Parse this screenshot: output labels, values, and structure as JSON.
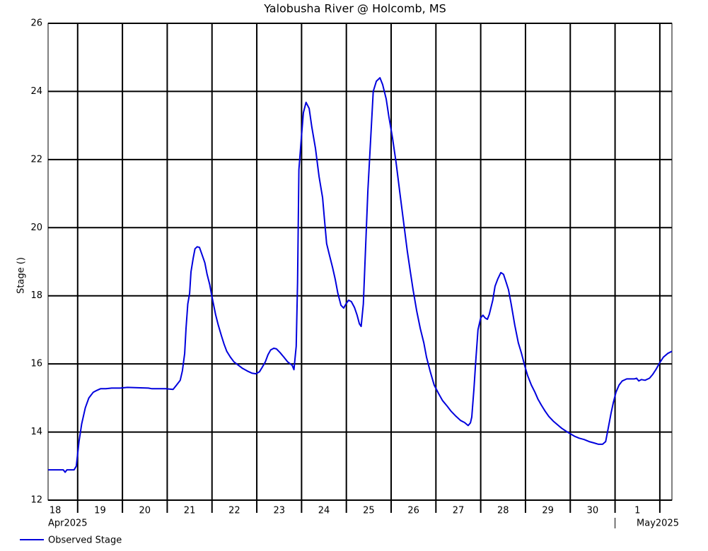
{
  "chart_data": {
    "type": "line",
    "title": "Yalobusha River @ Holcomb, MS",
    "y_label": "Stage ()",
    "xlim": [
      107.34,
      121.27
    ],
    "ylim": [
      12,
      26
    ],
    "yticks": [
      12,
      14,
      16,
      18,
      20,
      22,
      24,
      26
    ],
    "x_gridlines": [
      108,
      109,
      110,
      111,
      112,
      113,
      114,
      115,
      116,
      117,
      118,
      119,
      120,
      121
    ],
    "xticks": [
      {
        "value": 107.5,
        "label": "18"
      },
      {
        "value": 108.5,
        "label": "19"
      },
      {
        "value": 109.5,
        "label": "20"
      },
      {
        "value": 110.5,
        "label": "21"
      },
      {
        "value": 111.5,
        "label": "22"
      },
      {
        "value": 112.5,
        "label": "23"
      },
      {
        "value": 113.5,
        "label": "24"
      },
      {
        "value": 114.5,
        "label": "25"
      },
      {
        "value": 115.5,
        "label": "26"
      },
      {
        "value": 116.5,
        "label": "27"
      },
      {
        "value": 117.5,
        "label": "28"
      },
      {
        "value": 118.5,
        "label": "29"
      },
      {
        "value": 119.5,
        "label": "30"
      },
      {
        "value": 120.5,
        "label": "1"
      }
    ],
    "month_labels": [
      {
        "value": 107,
        "label": "Apr2025"
      },
      {
        "value": 120,
        "label": "May2025"
      }
    ],
    "grid": true,
    "legend": "bottom-left",
    "x": [
      107.34,
      107.68,
      107.72,
      107.76,
      107.92,
      107.97,
      108.03,
      108.09,
      108.17,
      108.25,
      108.35,
      108.41,
      108.51,
      108.63,
      108.76,
      108.87,
      108.95,
      109.11,
      109.58,
      109.66,
      109.77,
      109.97,
      110.13,
      110.21,
      110.29,
      110.34,
      110.39,
      110.42,
      110.46,
      110.5,
      110.53,
      110.58,
      110.62,
      110.67,
      110.72,
      110.78,
      110.84,
      110.89,
      110.95,
      111.0,
      111.08,
      111.14,
      111.21,
      111.27,
      111.33,
      111.41,
      111.49,
      111.59,
      111.68,
      111.79,
      111.89,
      111.98,
      112.06,
      112.12,
      112.19,
      112.25,
      112.31,
      112.38,
      112.44,
      112.52,
      112.61,
      112.69,
      112.79,
      112.83,
      112.88,
      112.91,
      112.94,
      112.99,
      113.04,
      113.1,
      113.17,
      113.23,
      113.31,
      113.39,
      113.47,
      113.51,
      113.56,
      113.62,
      113.69,
      113.75,
      113.81,
      113.88,
      113.94,
      113.99,
      114.05,
      114.11,
      114.18,
      114.24,
      114.29,
      114.33,
      114.38,
      114.43,
      114.48,
      114.54,
      114.6,
      114.67,
      114.75,
      114.81,
      114.89,
      114.95,
      115.03,
      115.11,
      115.19,
      115.25,
      115.3,
      115.36,
      115.43,
      115.49,
      115.57,
      115.65,
      115.73,
      115.79,
      115.87,
      115.96,
      116.06,
      116.15,
      116.25,
      116.34,
      116.45,
      116.55,
      116.64,
      116.72,
      116.77,
      116.8,
      116.85,
      116.89,
      116.94,
      117.0,
      117.05,
      117.1,
      117.15,
      117.19,
      117.27,
      117.32,
      117.38,
      117.45,
      117.51,
      117.57,
      117.62,
      117.68,
      117.76,
      117.84,
      117.91,
      117.98,
      118.05,
      118.13,
      118.21,
      118.28,
      118.36,
      118.44,
      118.52,
      118.62,
      118.71,
      118.81,
      118.9,
      119.0,
      119.09,
      119.2,
      119.31,
      119.42,
      119.53,
      119.63,
      119.72,
      119.79,
      119.85,
      119.91,
      119.96,
      120.02,
      120.09,
      120.16,
      120.26,
      120.35,
      120.43,
      120.48,
      120.53,
      120.59,
      120.67,
      120.77,
      120.84,
      120.92,
      121.0,
      121.08,
      121.18,
      121.27
    ],
    "series": [
      {
        "name": "Observed Stage",
        "color": "#0000dd",
        "values": [
          12.89,
          12.89,
          12.82,
          12.89,
          12.89,
          13.0,
          13.72,
          14.24,
          14.71,
          15.0,
          15.17,
          15.21,
          15.27,
          15.27,
          15.29,
          15.29,
          15.29,
          15.31,
          15.29,
          15.27,
          15.27,
          15.27,
          15.25,
          15.38,
          15.52,
          15.8,
          16.31,
          17.04,
          17.76,
          18.07,
          18.7,
          19.1,
          19.38,
          19.44,
          19.42,
          19.2,
          18.97,
          18.63,
          18.32,
          17.97,
          17.45,
          17.14,
          16.83,
          16.58,
          16.37,
          16.2,
          16.06,
          15.96,
          15.87,
          15.79,
          15.73,
          15.71,
          15.77,
          15.9,
          16.06,
          16.27,
          16.41,
          16.46,
          16.44,
          16.33,
          16.19,
          16.06,
          15.96,
          15.83,
          16.52,
          18.39,
          21.7,
          22.54,
          23.37,
          23.68,
          23.5,
          22.95,
          22.33,
          21.5,
          20.88,
          20.25,
          19.53,
          19.21,
          18.84,
          18.49,
          18.07,
          17.72,
          17.64,
          17.76,
          17.87,
          17.83,
          17.66,
          17.43,
          17.18,
          17.1,
          17.76,
          19.42,
          21.08,
          22.54,
          24.0,
          24.3,
          24.4,
          24.2,
          23.78,
          23.26,
          22.64,
          21.91,
          21.08,
          20.46,
          19.94,
          19.32,
          18.7,
          18.18,
          17.56,
          17.04,
          16.62,
          16.2,
          15.79,
          15.38,
          15.13,
          14.92,
          14.76,
          14.61,
          14.46,
          14.34,
          14.28,
          14.19,
          14.27,
          14.44,
          15.27,
          16.1,
          17.0,
          17.35,
          17.43,
          17.35,
          17.31,
          17.45,
          17.87,
          18.28,
          18.49,
          18.68,
          18.63,
          18.39,
          18.18,
          17.76,
          17.14,
          16.62,
          16.31,
          15.96,
          15.65,
          15.38,
          15.17,
          14.96,
          14.78,
          14.61,
          14.46,
          14.32,
          14.22,
          14.11,
          14.03,
          13.95,
          13.88,
          13.82,
          13.78,
          13.72,
          13.68,
          13.64,
          13.64,
          13.72,
          14.13,
          14.55,
          14.86,
          15.17,
          15.38,
          15.5,
          15.56,
          15.56,
          15.56,
          15.58,
          15.5,
          15.54,
          15.52,
          15.58,
          15.69,
          15.85,
          16.04,
          16.2,
          16.31,
          16.37
        ]
      }
    ]
  }
}
